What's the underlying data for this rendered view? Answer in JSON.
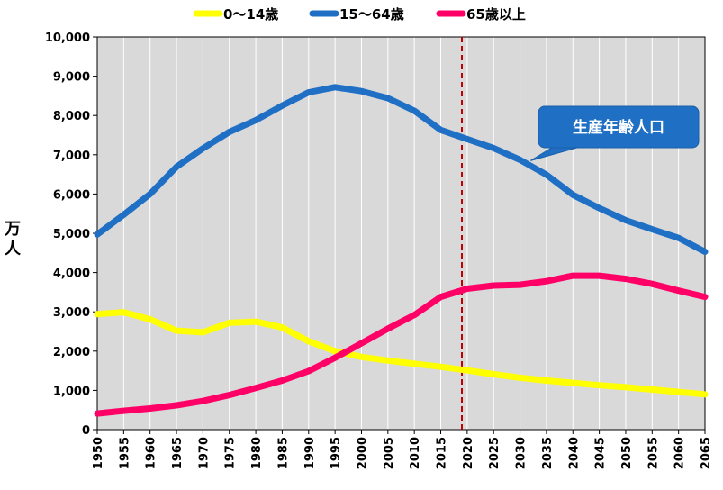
{
  "chart_data": {
    "type": "line",
    "title": "",
    "xlabel": "",
    "ylabel": "万人",
    "xlim": [
      1950,
      2065
    ],
    "ylim": [
      0,
      10000
    ],
    "yticks": [
      0,
      1000,
      2000,
      3000,
      4000,
      5000,
      6000,
      7000,
      8000,
      9000,
      10000
    ],
    "ytick_labels": [
      "0",
      "1,000",
      "2,000",
      "3,000",
      "4,000",
      "5,000",
      "6,000",
      "7,000",
      "8,000",
      "9,000",
      "10,000"
    ],
    "xticks": [
      1950,
      1955,
      1960,
      1965,
      1970,
      1975,
      1980,
      1985,
      1990,
      1995,
      2000,
      2005,
      2010,
      2015,
      2020,
      2025,
      2030,
      2035,
      2040,
      2045,
      2050,
      2055,
      2060,
      2065
    ],
    "xtick_labels": [
      "1950",
      "1955",
      "1960",
      "1965",
      "1970",
      "1975",
      "1980",
      "1985",
      "1990",
      "1995",
      "2000",
      "2005",
      "2010",
      "2015",
      "2020",
      "2025",
      "2030",
      "2035",
      "2040",
      "2045",
      "2050",
      "2055",
      "2060",
      "2065"
    ],
    "grid": "vertical",
    "background": "#d9d9d9",
    "legend_position": "top",
    "reference_line": {
      "x": 2019,
      "color": "#c00000",
      "style": "dashed"
    },
    "annotation": {
      "text": "生産年齢人口",
      "points_to_x": 2032,
      "points_to_y": 6850,
      "fill": "#1f6fc5"
    },
    "x": [
      1950,
      1955,
      1960,
      1965,
      1970,
      1975,
      1980,
      1985,
      1990,
      1995,
      2000,
      2005,
      2010,
      2015,
      2020,
      2025,
      2030,
      2035,
      2040,
      2045,
      2050,
      2055,
      2060,
      2065
    ],
    "series": [
      {
        "name": "0～14歳",
        "color": "#ffff00",
        "values": [
          2940,
          2990,
          2810,
          2520,
          2480,
          2720,
          2750,
          2600,
          2250,
          2000,
          1850,
          1760,
          1680,
          1600,
          1510,
          1410,
          1320,
          1250,
          1190,
          1130,
          1080,
          1020,
          960,
          900
        ]
      },
      {
        "name": "15～64歳",
        "color": "#1f6fc5",
        "values": [
          4970,
          5470,
          6000,
          6690,
          7160,
          7580,
          7880,
          8250,
          8590,
          8720,
          8620,
          8440,
          8120,
          7630,
          7400,
          7170,
          6870,
          6490,
          5980,
          5640,
          5330,
          5100,
          4880,
          4530
        ]
      },
      {
        "name": "65歳以上",
        "color": "#ff0066",
        "values": [
          410,
          480,
          540,
          620,
          730,
          880,
          1060,
          1250,
          1490,
          1830,
          2200,
          2570,
          2920,
          3380,
          3590,
          3670,
          3690,
          3780,
          3920,
          3920,
          3840,
          3710,
          3540,
          3380
        ]
      }
    ]
  }
}
